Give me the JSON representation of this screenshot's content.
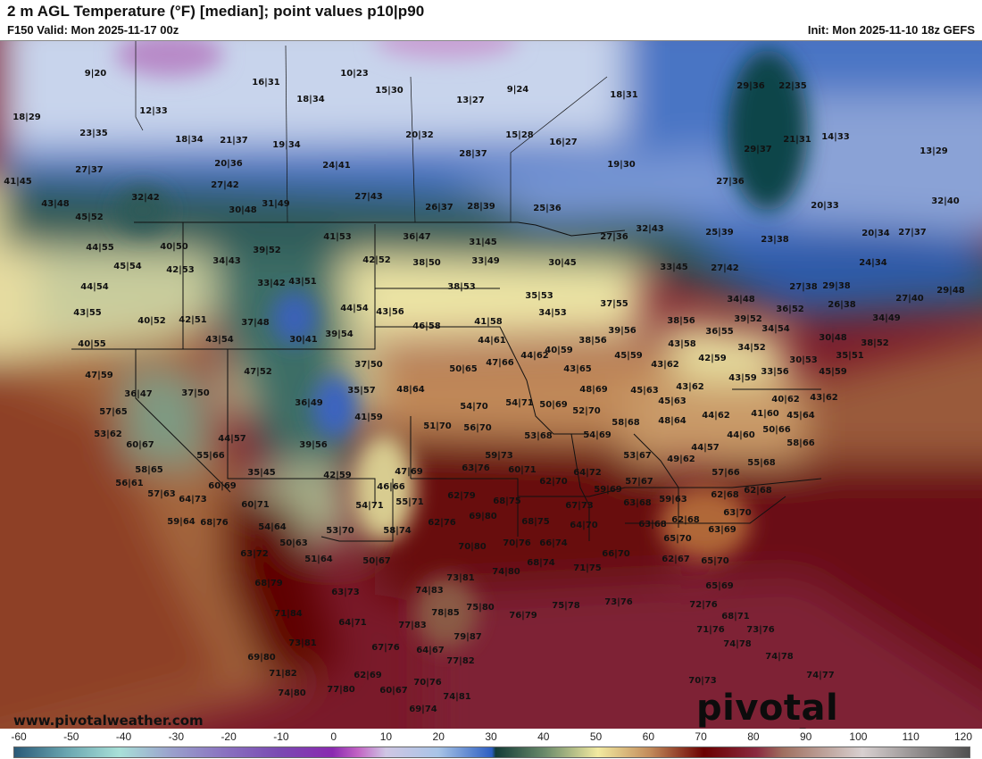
{
  "header": {
    "title": "2 m AGL Temperature (°F) [median]; point values p10|p90",
    "valid": "F150 Valid: Mon 2025-11-17 00z",
    "init": "Init: Mon 2025-11-10 18z GEFS"
  },
  "branding": {
    "site": "www.pivotalweather.com",
    "logo": "pivotal weather"
  },
  "colorbar": {
    "unit": "°F",
    "ticks": [
      "-60",
      "-50",
      "-40",
      "-30",
      "-20",
      "-10",
      "0",
      "10",
      "20",
      "30",
      "40",
      "50",
      "60",
      "70",
      "80",
      "90",
      "100",
      "110",
      "120"
    ]
  },
  "point_values": [
    "9|20",
    "16|31",
    "18|34",
    "18|29",
    "12|33",
    "23|35",
    "18|34",
    "21|37",
    "19|34",
    "20|36",
    "27|37",
    "24|41",
    "41|45",
    "27|42",
    "32|42",
    "43|48",
    "30|48",
    "31|49",
    "45|52",
    "10|23",
    "15|30",
    "13|27",
    "9|24",
    "18|31",
    "20|32",
    "15|28",
    "16|27",
    "28|37",
    "19|30",
    "27|43",
    "26|37",
    "28|39",
    "25|36",
    "27|36",
    "32|43",
    "41|53",
    "36|47",
    "31|45",
    "29|36",
    "22|35",
    "21|31",
    "14|33",
    "29|37",
    "13|29",
    "27|36",
    "20|33",
    "32|40",
    "25|39",
    "23|38",
    "20|34",
    "27|37",
    "44|55",
    "40|50",
    "39|52",
    "45|54",
    "42|53",
    "34|43",
    "33|42",
    "43|51",
    "44|54",
    "43|55",
    "40|52",
    "42|51",
    "37|48",
    "43|54",
    "30|41",
    "40|55",
    "47|59",
    "47|52",
    "36|47",
    "37|50",
    "36|49",
    "57|65",
    "53|62",
    "60|67",
    "44|57",
    "39|56",
    "55|66",
    "58|65",
    "35|45",
    "42|52",
    "38|50",
    "33|49",
    "30|45",
    "38|53",
    "35|53",
    "34|53",
    "37|55",
    "44|54",
    "43|56",
    "46|58",
    "41|58",
    "39|54",
    "44|61",
    "39|56",
    "40|59",
    "38|56",
    "45|59",
    "44|62",
    "37|50",
    "50|65",
    "47|66",
    "43|65",
    "48|64",
    "35|57",
    "48|69",
    "54|70",
    "54|71",
    "50|69",
    "52|70",
    "41|59",
    "51|70",
    "56|70",
    "53|68",
    "54|69",
    "58|68",
    "59|73",
    "53|67",
    "63|76",
    "60|71",
    "64|72",
    "45|63",
    "33|45",
    "27|42",
    "24|34",
    "27|38",
    "29|38",
    "34|48",
    "26|38",
    "27|40",
    "29|48",
    "36|52",
    "38|56",
    "39|52",
    "36|55",
    "34|54",
    "34|49",
    "30|48",
    "43|58",
    "34|52",
    "38|52",
    "42|59",
    "35|51",
    "30|53",
    "45|59",
    "43|62",
    "33|56",
    "43|59",
    "43|62",
    "45|63",
    "48|64",
    "44|62",
    "41|60",
    "40|62",
    "43|62",
    "45|64",
    "44|60",
    "50|66",
    "44|57",
    "58|66",
    "49|62",
    "55|68",
    "57|66",
    "56|61",
    "57|63",
    "64|73",
    "60|69",
    "60|71",
    "59|64",
    "68|76",
    "54|64",
    "50|63",
    "63|72",
    "51|64",
    "68|79",
    "71|84",
    "73|81",
    "69|80",
    "71|82",
    "74|80",
    "42|59",
    "47|69",
    "46|66",
    "54|71",
    "55|71",
    "62|79",
    "68|75",
    "62|70",
    "59|69",
    "63|68",
    "57|67",
    "67|73",
    "69|80",
    "62|76",
    "68|75",
    "63|68",
    "58|74",
    "53|70",
    "70|80",
    "70|76",
    "66|74",
    "64|70",
    "50|67",
    "68|74",
    "71|75",
    "66|70",
    "74|80",
    "73|81",
    "63|73",
    "74|83",
    "75|80",
    "78|85",
    "76|79",
    "75|78",
    "73|76",
    "64|71",
    "77|83",
    "79|87",
    "67|76",
    "64|67",
    "77|82",
    "62|69",
    "60|67",
    "70|76",
    "77|80",
    "74|81",
    "69|74",
    "62|68",
    "59|63",
    "62|68",
    "63|70",
    "62|68",
    "63|69",
    "65|70",
    "62|67",
    "65|70",
    "65|69",
    "72|76",
    "68|71",
    "71|76",
    "73|76",
    "74|78",
    "74|78",
    "74|77",
    "70|73"
  ]
}
